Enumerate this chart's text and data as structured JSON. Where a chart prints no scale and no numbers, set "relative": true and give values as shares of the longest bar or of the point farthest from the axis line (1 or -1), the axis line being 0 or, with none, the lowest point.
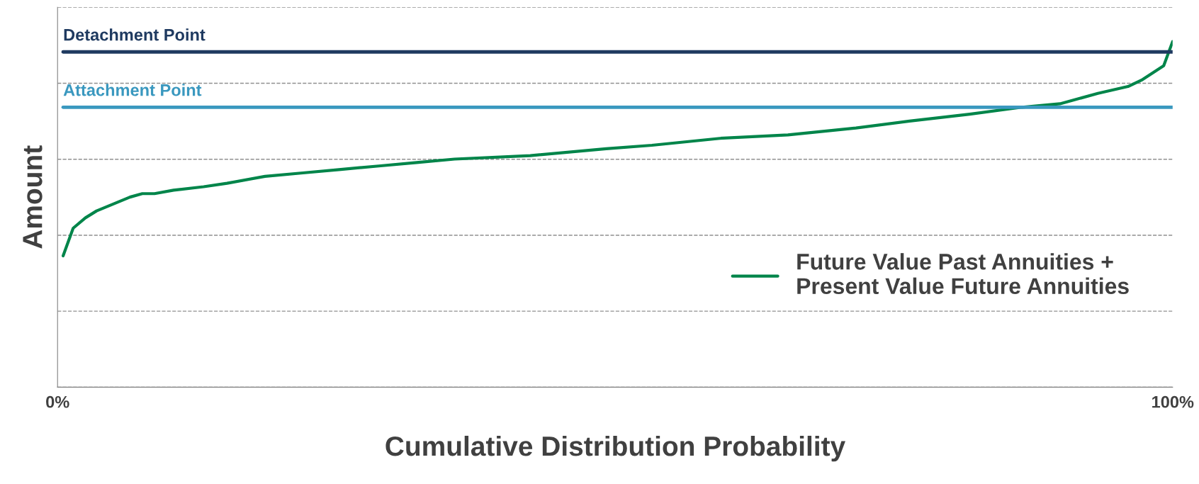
{
  "chart_data": {
    "type": "line",
    "relative": true,
    "xlabel": "Cumulative Distribution Probability",
    "ylabel": "Amount",
    "xlim": [
      0,
      100
    ],
    "xticks": [
      {
        "value": 0,
        "label": "0%"
      },
      {
        "value": 100,
        "label": "100%"
      }
    ],
    "tick_labels": "x",
    "grid": "y",
    "legend": "bottom right",
    "marker": "none",
    "line_style": "solid",
    "series": [
      {
        "name": "Future Value Past Annuities +\nPresent Value Future Annuities",
        "color": "#00854a",
        "x": [
          0.5,
          1.4,
          2.5,
          3.5,
          5,
          6.5,
          7.6,
          8.7,
          10.4,
          13.1,
          15.2,
          18.6,
          22,
          25.4,
          28.8,
          32.2,
          35.6,
          42.4,
          49.2,
          53.3,
          59.4,
          65.5,
          71.6,
          76.4,
          81.8,
          86.5,
          89.9,
          93.3,
          96,
          97.3,
          99.2,
          100
        ],
        "values": [
          0.38,
          0.46,
          0.49,
          0.51,
          0.53,
          0.55,
          0.56,
          0.56,
          0.57,
          0.58,
          0.59,
          0.61,
          0.62,
          0.63,
          0.64,
          0.65,
          0.66,
          0.67,
          0.69,
          0.7,
          0.72,
          0.73,
          0.75,
          0.77,
          0.79,
          0.81,
          0.82,
          0.85,
          0.87,
          0.89,
          0.93,
          1.0
        ]
      }
    ],
    "ref_lines": [
      {
        "axis": "y",
        "value": 0.97,
        "label": "Detachment Point",
        "color": "#1f3a60"
      },
      {
        "axis": "y",
        "value": 0.81,
        "label": "Attachment Point",
        "color": "#3a98bf"
      }
    ]
  }
}
